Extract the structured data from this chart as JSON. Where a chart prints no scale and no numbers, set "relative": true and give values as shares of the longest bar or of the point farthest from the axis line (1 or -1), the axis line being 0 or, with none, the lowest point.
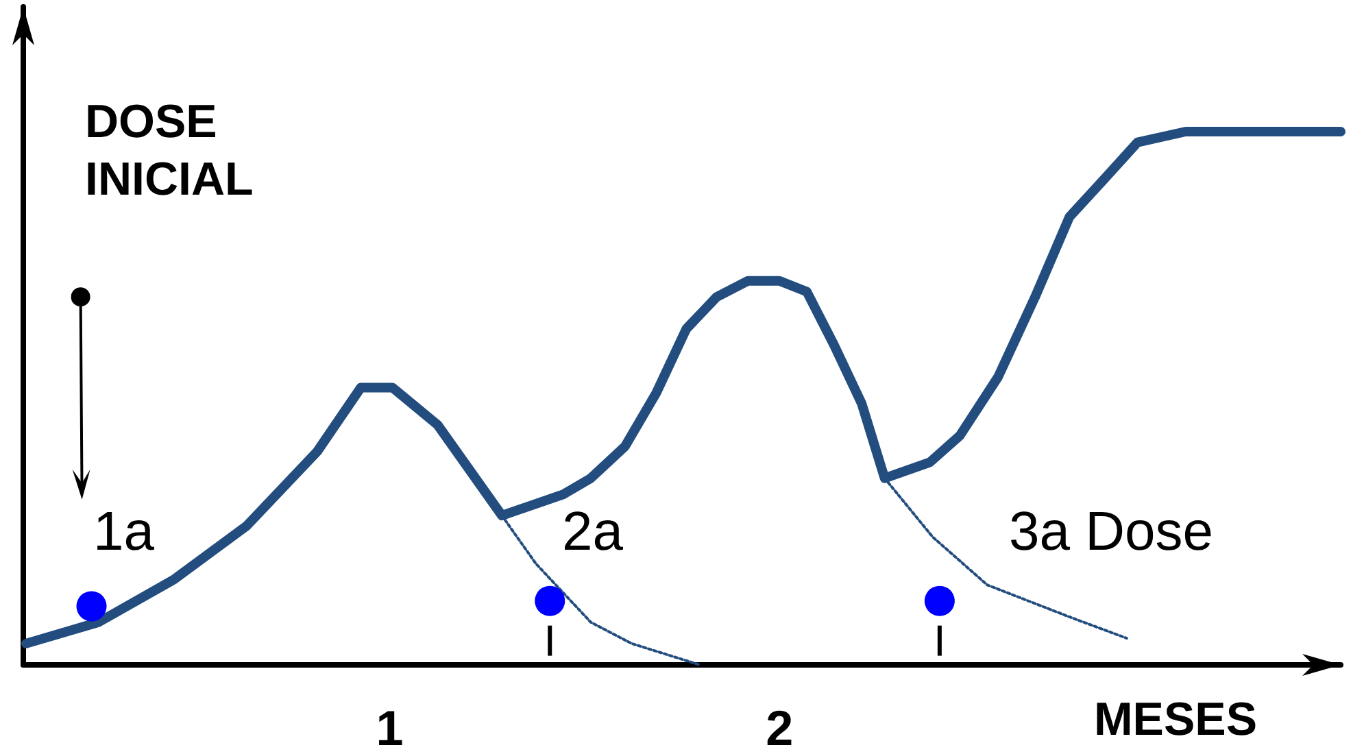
{
  "chart_data": {
    "type": "line",
    "relative": true,
    "xlabel": "MESES",
    "ylabel": "DOSE INICIAL",
    "xlim": [
      0.06,
      3.44
    ],
    "xticks": [
      1,
      2
    ],
    "tick_labels": "x",
    "annotations": [
      "1a",
      "2a",
      "3a Dose"
    ],
    "series": [
      {
        "color": "#234d7e",
        "line_style": "solid",
        "marker": "none",
        "x": [
          0.067,
          0.253,
          0.446,
          0.632,
          0.814,
          0.926,
          1.007,
          1.123,
          1.288,
          1.446,
          1.516,
          1.604,
          1.684,
          1.761,
          1.839,
          1.919,
          2.0,
          2.07,
          2.14,
          2.211,
          2.27,
          2.386,
          2.463,
          2.561,
          2.656,
          2.744,
          2.832,
          2.919,
          3.042,
          3.44
        ],
        "values": [
          0.04,
          0.08,
          0.16,
          0.26,
          0.4,
          0.52,
          0.52,
          0.45,
          0.28,
          0.32,
          0.35,
          0.41,
          0.51,
          0.63,
          0.69,
          0.72,
          0.72,
          0.7,
          0.6,
          0.49,
          0.35,
          0.38,
          0.43,
          0.54,
          0.69,
          0.84,
          0.91,
          0.98,
          1,
          1
        ]
      },
      {
        "type": "line",
        "color": "#234d7e",
        "line_style": "dotted",
        "marker": "none",
        "x": [
          1.288,
          1.375,
          1.516,
          1.621,
          1.796
        ],
        "values": [
          0.28,
          0.19,
          0.08,
          0.04,
          0
        ]
      },
      {
        "type": "line",
        "color": "#234d7e",
        "line_style": "dotted",
        "marker": "none",
        "x": [
          2.27,
          2.393,
          2.533,
          2.744,
          2.891
        ],
        "values": [
          0.35,
          0.24,
          0.15,
          0.09,
          0.05
        ]
      },
      {
        "type": "scatter",
        "color": "#0000ff",
        "marker": "circle",
        "x": [
          0.235,
          1.411,
          2.411
        ],
        "values": [
          0.11,
          0.12,
          0.12
        ]
      }
    ]
  }
}
